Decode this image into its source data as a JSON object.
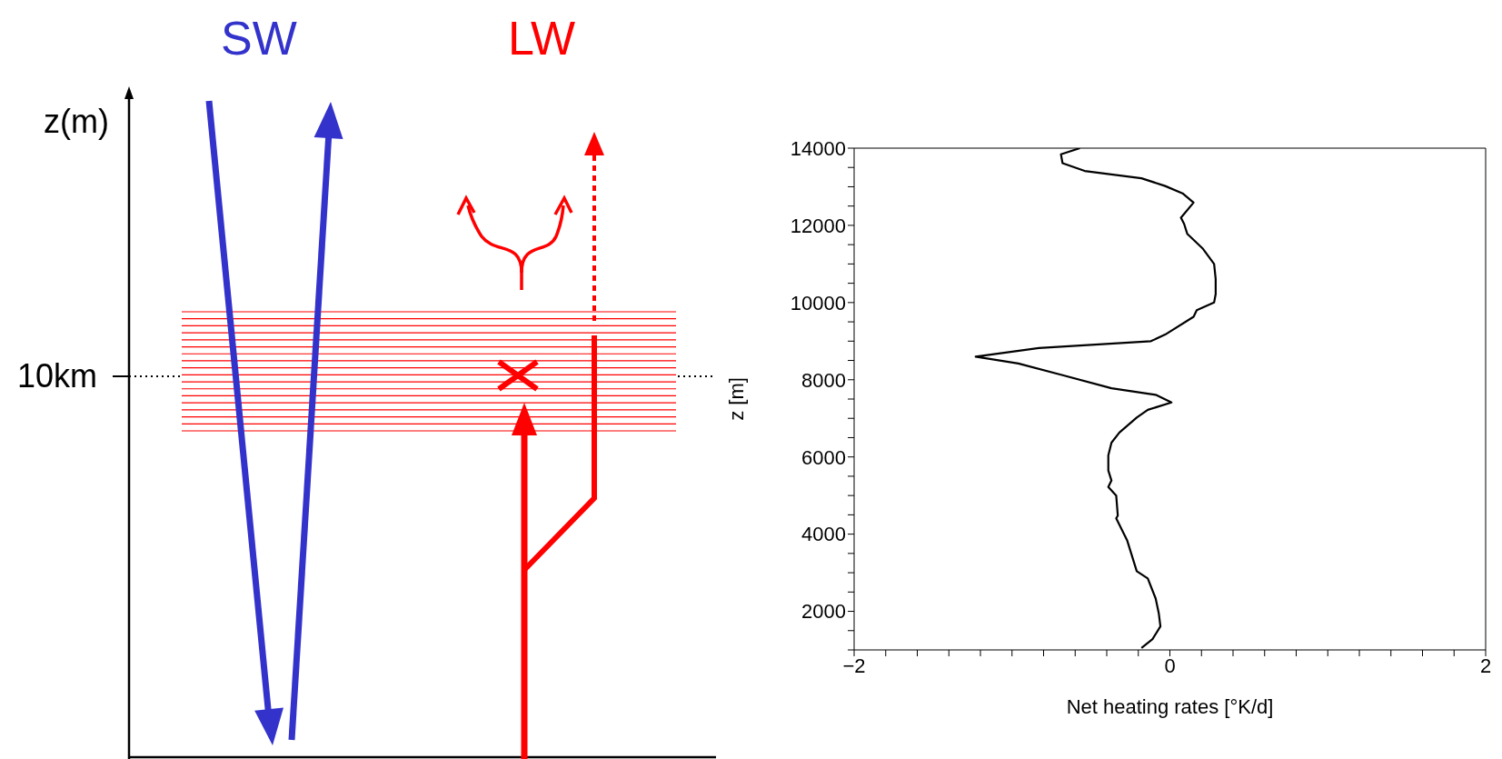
{
  "chart_data": [
    {
      "type": "other",
      "annotations": [
        "SW",
        "LW",
        "z(m)",
        "10km"
      ]
    },
    {
      "type": "line",
      "xlabel": "Net heating rates [°K/d]",
      "ylabel": "z [m]",
      "xlim": [
        -2,
        2
      ],
      "ylim": [
        1000,
        14000
      ],
      "marker": "none",
      "xticks": [
        {
          "value": -2,
          "label": "−2"
        },
        {
          "value": -1.8,
          "label": null
        },
        {
          "value": -1.6,
          "label": null
        },
        {
          "value": -1.4,
          "label": null
        },
        {
          "value": -1.2,
          "label": null
        },
        {
          "value": -1,
          "label": null
        },
        {
          "value": -0.8,
          "label": null
        },
        {
          "value": -0.6,
          "label": null
        },
        {
          "value": -0.4,
          "label": null
        },
        {
          "value": -0.2,
          "label": null
        },
        0,
        {
          "value": 0.2,
          "label": null
        },
        {
          "value": 0.4,
          "label": null
        },
        {
          "value": 0.6,
          "label": null
        },
        {
          "value": 0.8,
          "label": null
        },
        {
          "value": 1,
          "label": null
        },
        {
          "value": 1.2,
          "label": null
        },
        {
          "value": 1.4,
          "label": null
        },
        {
          "value": 1.6,
          "label": null
        },
        {
          "value": 1.8,
          "label": null
        },
        2
      ],
      "yticks": [
        {
          "value": 1000,
          "label": null
        },
        {
          "value": 1500,
          "label": null
        },
        2000,
        {
          "value": 2500,
          "label": null
        },
        {
          "value": 3000,
          "label": null
        },
        {
          "value": 3500,
          "label": null
        },
        4000,
        {
          "value": 4500,
          "label": null
        },
        {
          "value": 5000,
          "label": null
        },
        {
          "value": 5500,
          "label": null
        },
        6000,
        {
          "value": 6500,
          "label": null
        },
        {
          "value": 7000,
          "label": null
        },
        {
          "value": 7500,
          "label": null
        },
        8000,
        {
          "value": 8500,
          "label": null
        },
        {
          "value": 9000,
          "label": null
        },
        {
          "value": 9500,
          "label": null
        },
        10000,
        {
          "value": 10500,
          "label": null
        },
        {
          "value": 11000,
          "label": null
        },
        {
          "value": 11500,
          "label": null
        },
        12000,
        {
          "value": 12500,
          "label": null
        },
        {
          "value": 13000,
          "label": null
        },
        {
          "value": 13500,
          "label": null
        },
        14000
      ],
      "x": [
        -0.57,
        -0.69,
        -0.68,
        -0.54,
        -0.18,
        -0.03,
        0.08,
        0.15,
        0.07,
        0.09,
        0.11,
        0.21,
        0.28,
        0.29,
        0.29,
        0.28,
        0.17,
        0.15,
        -0.03,
        -0.12,
        -0.83,
        -1.23,
        -0.96,
        -0.69,
        -0.37,
        -0.09,
        0.01,
        -0.14,
        -0.21,
        -0.32,
        -0.37,
        -0.39,
        -0.39,
        -0.37,
        -0.39,
        -0.34,
        -0.33,
        -0.34,
        -0.27,
        -0.21,
        -0.14,
        -0.09,
        -0.07,
        -0.06,
        -0.11,
        -0.18
      ],
      "series": [
        {
          "color": "#000000",
          "values": [
            14000,
            13840,
            13610,
            13410,
            13220,
            13020,
            12830,
            12590,
            12200,
            12040,
            11780,
            11390,
            11000,
            10610,
            10220,
            10000,
            9800,
            9630,
            9170,
            9000,
            8820,
            8600,
            8420,
            8130,
            7780,
            7610,
            7410,
            7220,
            7020,
            6630,
            6370,
            6040,
            5650,
            5390,
            5220,
            5000,
            4480,
            4410,
            3830,
            3040,
            2850,
            2330,
            1940,
            1610,
            1280,
            1050
          ]
        }
      ]
    }
  ]
}
